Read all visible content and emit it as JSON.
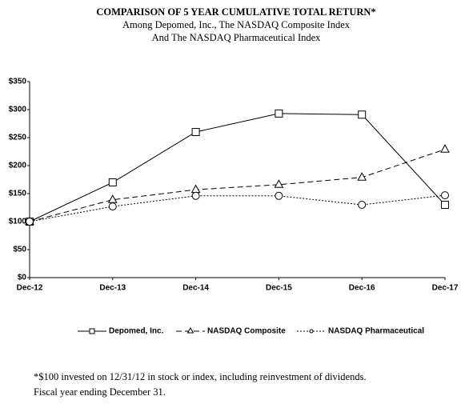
{
  "chart_data": {
    "type": "line",
    "title": "COMPARISON OF 5 YEAR CUMULATIVE TOTAL RETURN*",
    "subtitle": [
      "Among Depomed, Inc., The NASDAQ Composite Index",
      "And The NASDAQ Pharmaceutical Index"
    ],
    "categories": [
      "Dec-12",
      "Dec-13",
      "Dec-14",
      "Dec-15",
      "Dec-16",
      "Dec-17"
    ],
    "series": [
      {
        "name": "Depomed, Inc.",
        "color": "#000000",
        "dash": "solid",
        "marker": "square",
        "values": [
          100,
          170,
          260,
          293,
          291,
          130
        ]
      },
      {
        "name": "NASDAQ Composite",
        "color": "#000000",
        "dash": "dashed",
        "marker": "triangle",
        "values": [
          100,
          139,
          157,
          166,
          179,
          229
        ]
      },
      {
        "name": "NASDAQ Pharmaceutical",
        "color": "#000000",
        "dash": "dotted",
        "marker": "circle",
        "values": [
          100,
          127,
          146,
          146,
          130,
          147
        ]
      }
    ],
    "ylim": [
      0,
      350
    ],
    "yticks": [
      {
        "value": 0,
        "label": "$0"
      },
      {
        "value": 50,
        "label": "$50"
      },
      {
        "value": 100,
        "label": "$100"
      },
      {
        "value": 150,
        "label": "$150"
      },
      {
        "value": 200,
        "label": "$200"
      },
      {
        "value": 250,
        "label": "$250"
      },
      {
        "value": 300,
        "label": "$300"
      },
      {
        "value": 350,
        "label": "$350"
      }
    ],
    "grid": false,
    "legend": "bottom",
    "footnote": [
      "*$100 invested on 12/31/12 in stock or index, including reinvestment of dividends.",
      "Fiscal year ending December 31."
    ]
  }
}
